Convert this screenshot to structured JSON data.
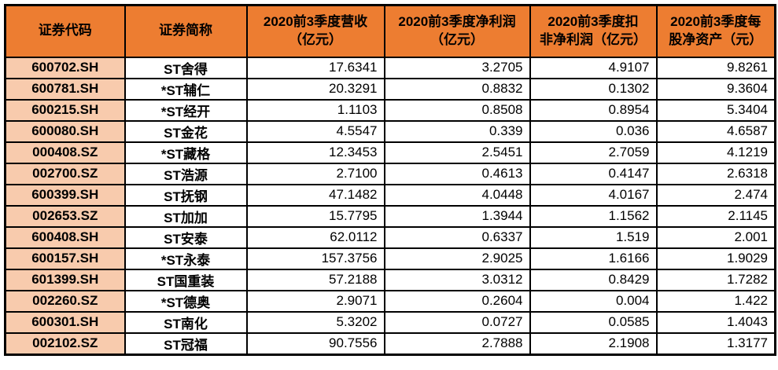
{
  "colors": {
    "header_bg": "#ED7D31",
    "code_column_bg": "#F8CBAD",
    "cell_bg": "#FFFFFF",
    "border": "#000000",
    "text": "#000000"
  },
  "chart_data": {
    "type": "table",
    "columns": [
      "证券代码",
      "证券简称",
      "2020前3季度营收\n（亿元）",
      "2020前3季度净利润\n（亿元）",
      "2020前3季度扣\n非净利润（亿元）",
      "2020前3季度每\n股净资产（元）"
    ],
    "rows": [
      [
        "600702.SH",
        "ST舍得",
        "17.6341",
        "3.2705",
        "4.9107",
        "9.8261"
      ],
      [
        "600781.SH",
        "*ST辅仁",
        "20.3291",
        "0.8832",
        "0.1302",
        "9.3604"
      ],
      [
        "600215.SH",
        "*ST经开",
        "1.1103",
        "0.8508",
        "0.8954",
        "5.3404"
      ],
      [
        "600080.SH",
        "ST金花",
        "4.5547",
        "0.339",
        "0.036",
        "4.6587"
      ],
      [
        "000408.SZ",
        "*ST藏格",
        "12.3453",
        "2.5451",
        "2.7059",
        "4.1219"
      ],
      [
        "002700.SZ",
        "ST浩源",
        "2.7100",
        "0.4613",
        "0.4147",
        "2.6318"
      ],
      [
        "600399.SH",
        "ST抚钢",
        "47.1482",
        "4.0448",
        "4.0167",
        "2.474"
      ],
      [
        "002653.SZ",
        "ST加加",
        "15.7795",
        "1.3944",
        "1.1562",
        "2.1145"
      ],
      [
        "600408.SH",
        "ST安泰",
        "62.0112",
        "0.6337",
        "1.519",
        "2.001"
      ],
      [
        "600157.SH",
        "*ST永泰",
        "157.3756",
        "2.9025",
        "1.6166",
        "1.9029"
      ],
      [
        "601399.SH",
        "ST国重装",
        "57.2188",
        "3.0312",
        "0.8429",
        "1.7282"
      ],
      [
        "002260.SZ",
        "*ST德奥",
        "2.9071",
        "0.2604",
        "0.004",
        "1.422"
      ],
      [
        "600301.SH",
        "ST南化",
        "5.3202",
        "0.0727",
        "0.0585",
        "1.4043"
      ],
      [
        "002102.SZ",
        "ST冠福",
        "90.7556",
        "2.7888",
        "2.1908",
        "1.3177"
      ]
    ]
  }
}
